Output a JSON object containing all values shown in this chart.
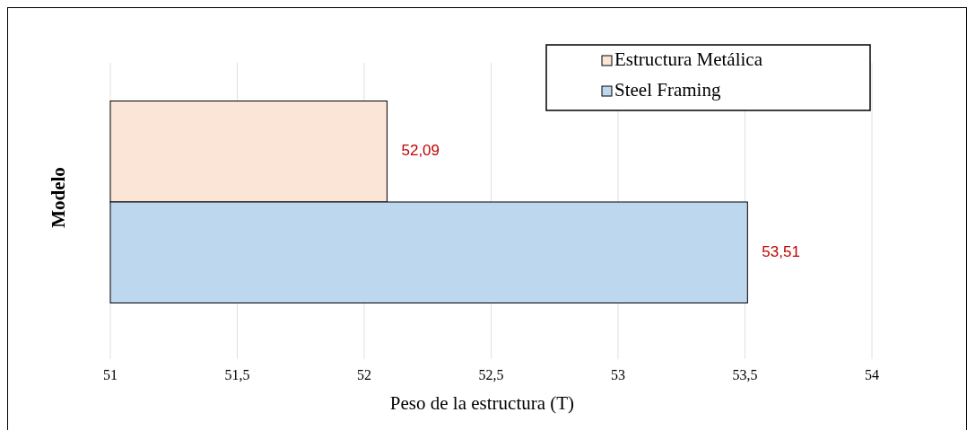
{
  "chart_data": {
    "type": "bar",
    "orientation": "horizontal",
    "categories": [
      null
    ],
    "series": [
      {
        "name": "Estructura Metálica",
        "color": "#fbe5d6",
        "values": [
          52.09
        ],
        "value_labels": [
          "52,09"
        ]
      },
      {
        "name": "Steel Framing",
        "color": "#bdd7ee",
        "values": [
          53.51
        ],
        "value_labels": [
          "53,51"
        ]
      }
    ],
    "xlim": [
      51,
      54
    ],
    "xticks": [
      51,
      {
        "value": 51.5,
        "label": "51,5"
      },
      52,
      {
        "value": 52.5,
        "label": "52,5"
      },
      53,
      {
        "value": 53.5,
        "label": "53,5"
      },
      54
    ],
    "xlabel": "Peso de la estructura (T)",
    "ylabel": "Modelo",
    "grid": "x",
    "legend": "top right"
  }
}
